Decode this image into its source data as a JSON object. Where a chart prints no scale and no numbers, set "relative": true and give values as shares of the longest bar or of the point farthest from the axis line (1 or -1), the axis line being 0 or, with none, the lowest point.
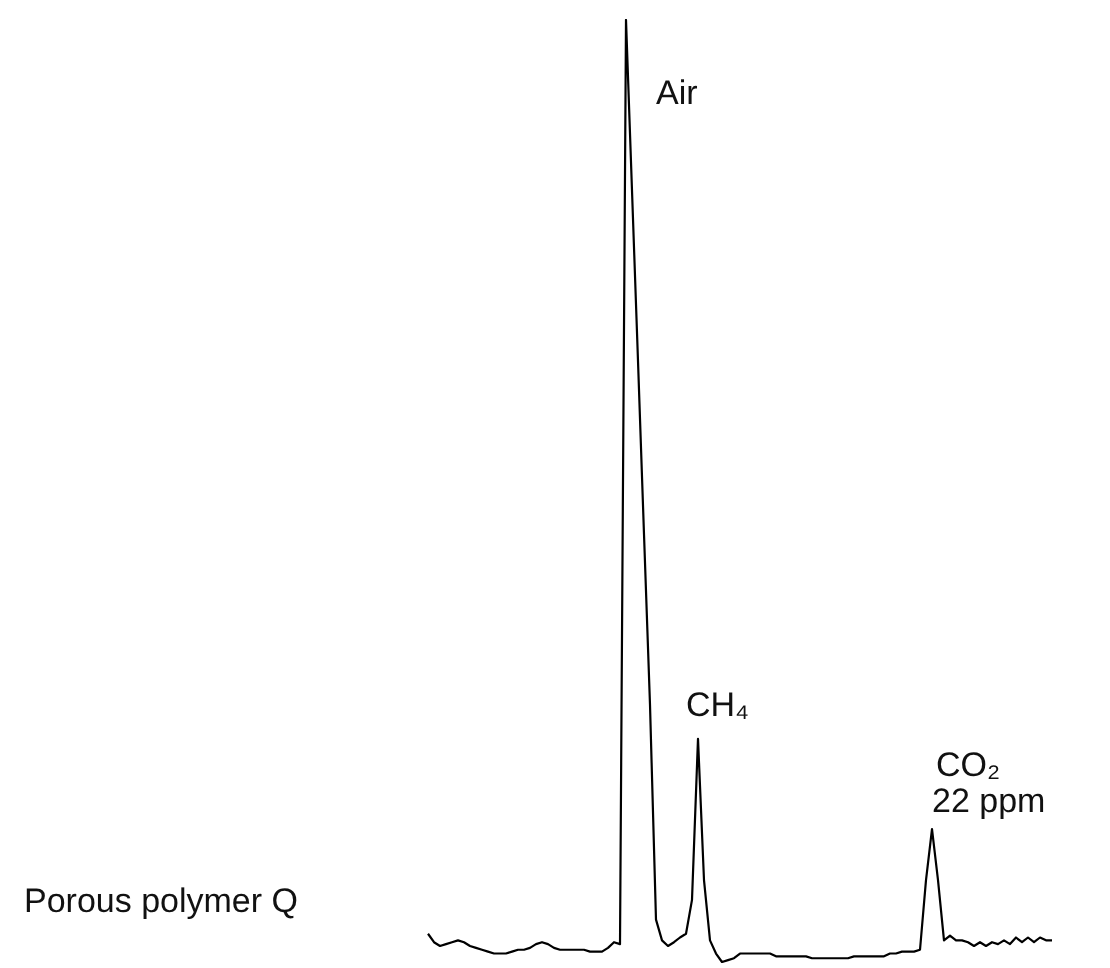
{
  "chart_data": {
    "type": "line",
    "relative": true,
    "marker": "none",
    "line_style": "solid",
    "annotations": [
      "Air",
      "CH₄",
      "CO₂",
      "22 ppm",
      "Porous polymer Q"
    ],
    "categories": [
      null,
      null,
      null,
      null,
      null,
      null,
      null,
      null,
      null,
      null,
      null,
      null,
      null,
      null,
      null,
      null,
      null,
      null,
      null,
      null,
      null,
      null,
      null,
      null,
      null,
      null,
      null,
      null,
      null,
      null,
      null,
      null,
      null,
      null,
      null,
      null,
      null,
      null,
      null,
      null,
      null,
      null,
      null,
      null,
      null,
      null,
      null,
      null,
      null,
      null,
      null,
      null,
      null,
      null,
      null,
      null,
      null,
      null,
      null,
      null,
      null,
      null,
      null,
      null,
      null,
      null,
      null,
      null,
      null,
      null,
      null,
      null,
      null,
      null,
      null,
      null,
      null,
      null,
      null,
      null,
      null,
      null,
      null,
      null,
      null,
      null,
      null,
      null,
      null,
      null,
      null,
      null,
      null,
      null,
      null,
      null,
      null,
      null,
      null,
      null,
      null,
      null,
      null,
      null,
      null
    ],
    "series": [
      {
        "color": "#000000",
        "values": [
          0.03,
          0.021,
          0.017,
          0.019,
          0.021,
          0.023,
          0.021,
          0.017,
          0.015,
          0.013,
          0.011,
          0.009,
          0.009,
          0.009,
          0.011,
          0.013,
          0.013,
          0.015,
          0.019,
          0.021,
          0.019,
          0.015,
          0.013,
          0.013,
          0.013,
          0.013,
          0.013,
          0.011,
          0.011,
          0.011,
          0.015,
          0.021,
          0.019,
          1,
          0.819,
          0.638,
          0.454,
          0.273,
          0.045,
          0.023,
          0.017,
          0.021,
          0.026,
          0.03,
          0.066,
          0.237,
          0.087,
          0.023,
          0.009,
          0,
          0.002,
          0.004,
          0.009,
          0.009,
          0.009,
          0.009,
          0.009,
          0.009,
          0.006,
          0.006,
          0.006,
          0.006,
          0.006,
          0.006,
          0.004,
          0.004,
          0.004,
          0.004,
          0.004,
          0.004,
          0.004,
          0.006,
          0.006,
          0.006,
          0.006,
          0.006,
          0.006,
          0.009,
          0.009,
          0.011,
          0.011,
          0.011,
          0.013,
          0.087,
          0.141,
          0.087,
          0.023,
          0.028,
          0.023,
          0.023,
          0.021,
          0.017,
          0.021,
          0.017,
          0.021,
          0.019,
          0.023,
          0.019,
          0.026,
          0.021,
          0.026,
          0.021,
          0.026,
          0.023,
          0.023
        ]
      }
    ]
  }
}
